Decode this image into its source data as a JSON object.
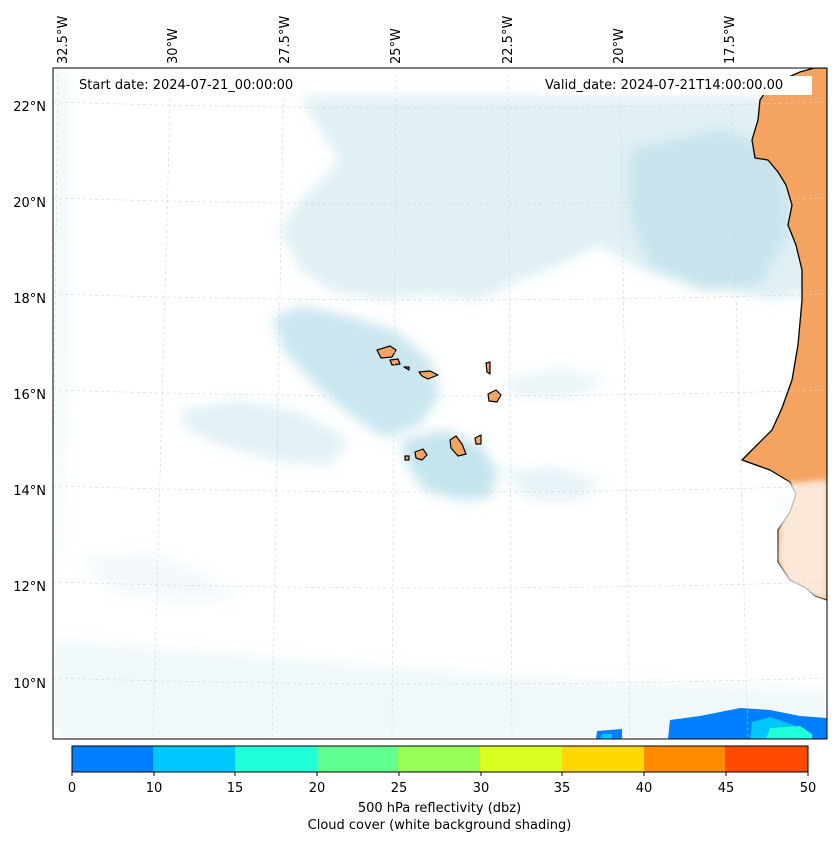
{
  "header": {
    "start_date": "Start date: 2024-07-21_00:00:00",
    "valid_date": "Valid_date: 2024-07-21T14:00:00.00"
  },
  "map": {
    "longitude_labels": [
      "32.5°W",
      "30°W",
      "27.5°W",
      "25°W",
      "22.5°W",
      "20°W",
      "17.5°W"
    ],
    "latitude_labels": [
      "22°N",
      "20°N",
      "18°N",
      "16°N",
      "14°N",
      "12°N",
      "10°N"
    ],
    "land_color": "#f4a460",
    "coast_color": "#000000",
    "cloud_color": "#add8e6",
    "grid_color": "#d3d3d3"
  },
  "colorbar": {
    "colors": [
      "#0080ff",
      "#00c8ff",
      "#20ffd8",
      "#60ff90",
      "#98ff58",
      "#d8ff20",
      "#ffd800",
      "#ff8c00",
      "#ff4a00"
    ],
    "ticks": [
      "0",
      "10",
      "15",
      "20",
      "25",
      "30",
      "35",
      "40",
      "45",
      "50"
    ],
    "label": "500 hPa reflectivity (dbz)",
    "sublabel": "Cloud cover (white background shading)"
  }
}
